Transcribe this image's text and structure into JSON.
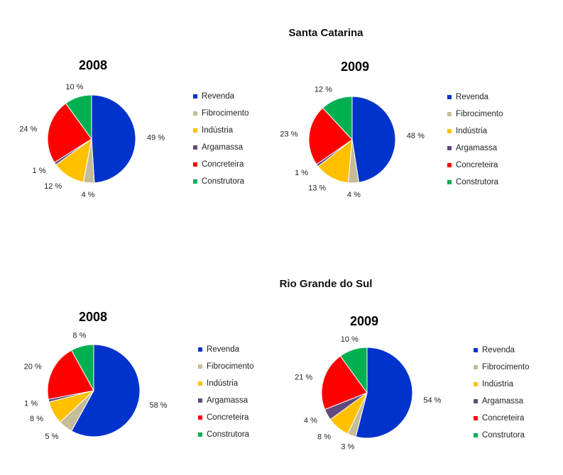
{
  "colors": {
    "Revenda": "#0033cc",
    "Fibrocimento": "#c4bd97",
    "Indústria": "#ffc000",
    "Argamassa": "#604a7b",
    "Concreteira": "#ff0000",
    "Construtora": "#00b050"
  },
  "regions": [
    {
      "title": "Santa Catarina",
      "charts": [
        {
          "year": "2008",
          "labels": [
            "49 %",
            "4 %",
            "12 %",
            "1 %",
            "24 %",
            "10 %"
          ]
        },
        {
          "year": "2009",
          "labels": [
            "48 %",
            "4 %",
            "13 %",
            "1 %",
            "23 %",
            "12 %"
          ]
        }
      ]
    },
    {
      "title": "Rio Grande do Sul",
      "charts": [
        {
          "year": "2008",
          "labels": [
            "58 %",
            "5 %",
            "8 %",
            "1 %",
            "20 %",
            "8 %"
          ]
        },
        {
          "year": "2009",
          "labels": [
            "54 %",
            "3 %",
            "8 %",
            "4 %",
            "21 %",
            "10 %"
          ]
        }
      ]
    }
  ],
  "chart_data": [
    {
      "type": "pie",
      "title": "2008",
      "region": "Santa Catarina",
      "categories": [
        "Revenda",
        "Fibrocimento",
        "Indústria",
        "Argamassa",
        "Concreteira",
        "Construtora"
      ],
      "values": [
        49,
        4,
        12,
        1,
        24,
        10
      ],
      "legend": "right"
    },
    {
      "type": "pie",
      "title": "2009",
      "region": "Santa Catarina",
      "categories": [
        "Revenda",
        "Fibrocimento",
        "Indústria",
        "Argamassa",
        "Concreteira",
        "Construtora"
      ],
      "values": [
        48,
        4,
        13,
        1,
        23,
        12
      ],
      "legend": "right"
    },
    {
      "type": "pie",
      "title": "2008",
      "region": "Rio Grande do Sul",
      "categories": [
        "Revenda",
        "Fibrocimento",
        "Indústria",
        "Argamassa",
        "Concreteira",
        "Construtora"
      ],
      "values": [
        58,
        5,
        8,
        1,
        20,
        8
      ],
      "legend": "right"
    },
    {
      "type": "pie",
      "title": "2009",
      "region": "Rio Grande do Sul",
      "categories": [
        "Revenda",
        "Fibrocimento",
        "Indústria",
        "Argamassa",
        "Concreteira",
        "Construtora"
      ],
      "values": [
        54,
        3,
        8,
        4,
        21,
        10
      ],
      "legend": "right"
    }
  ]
}
